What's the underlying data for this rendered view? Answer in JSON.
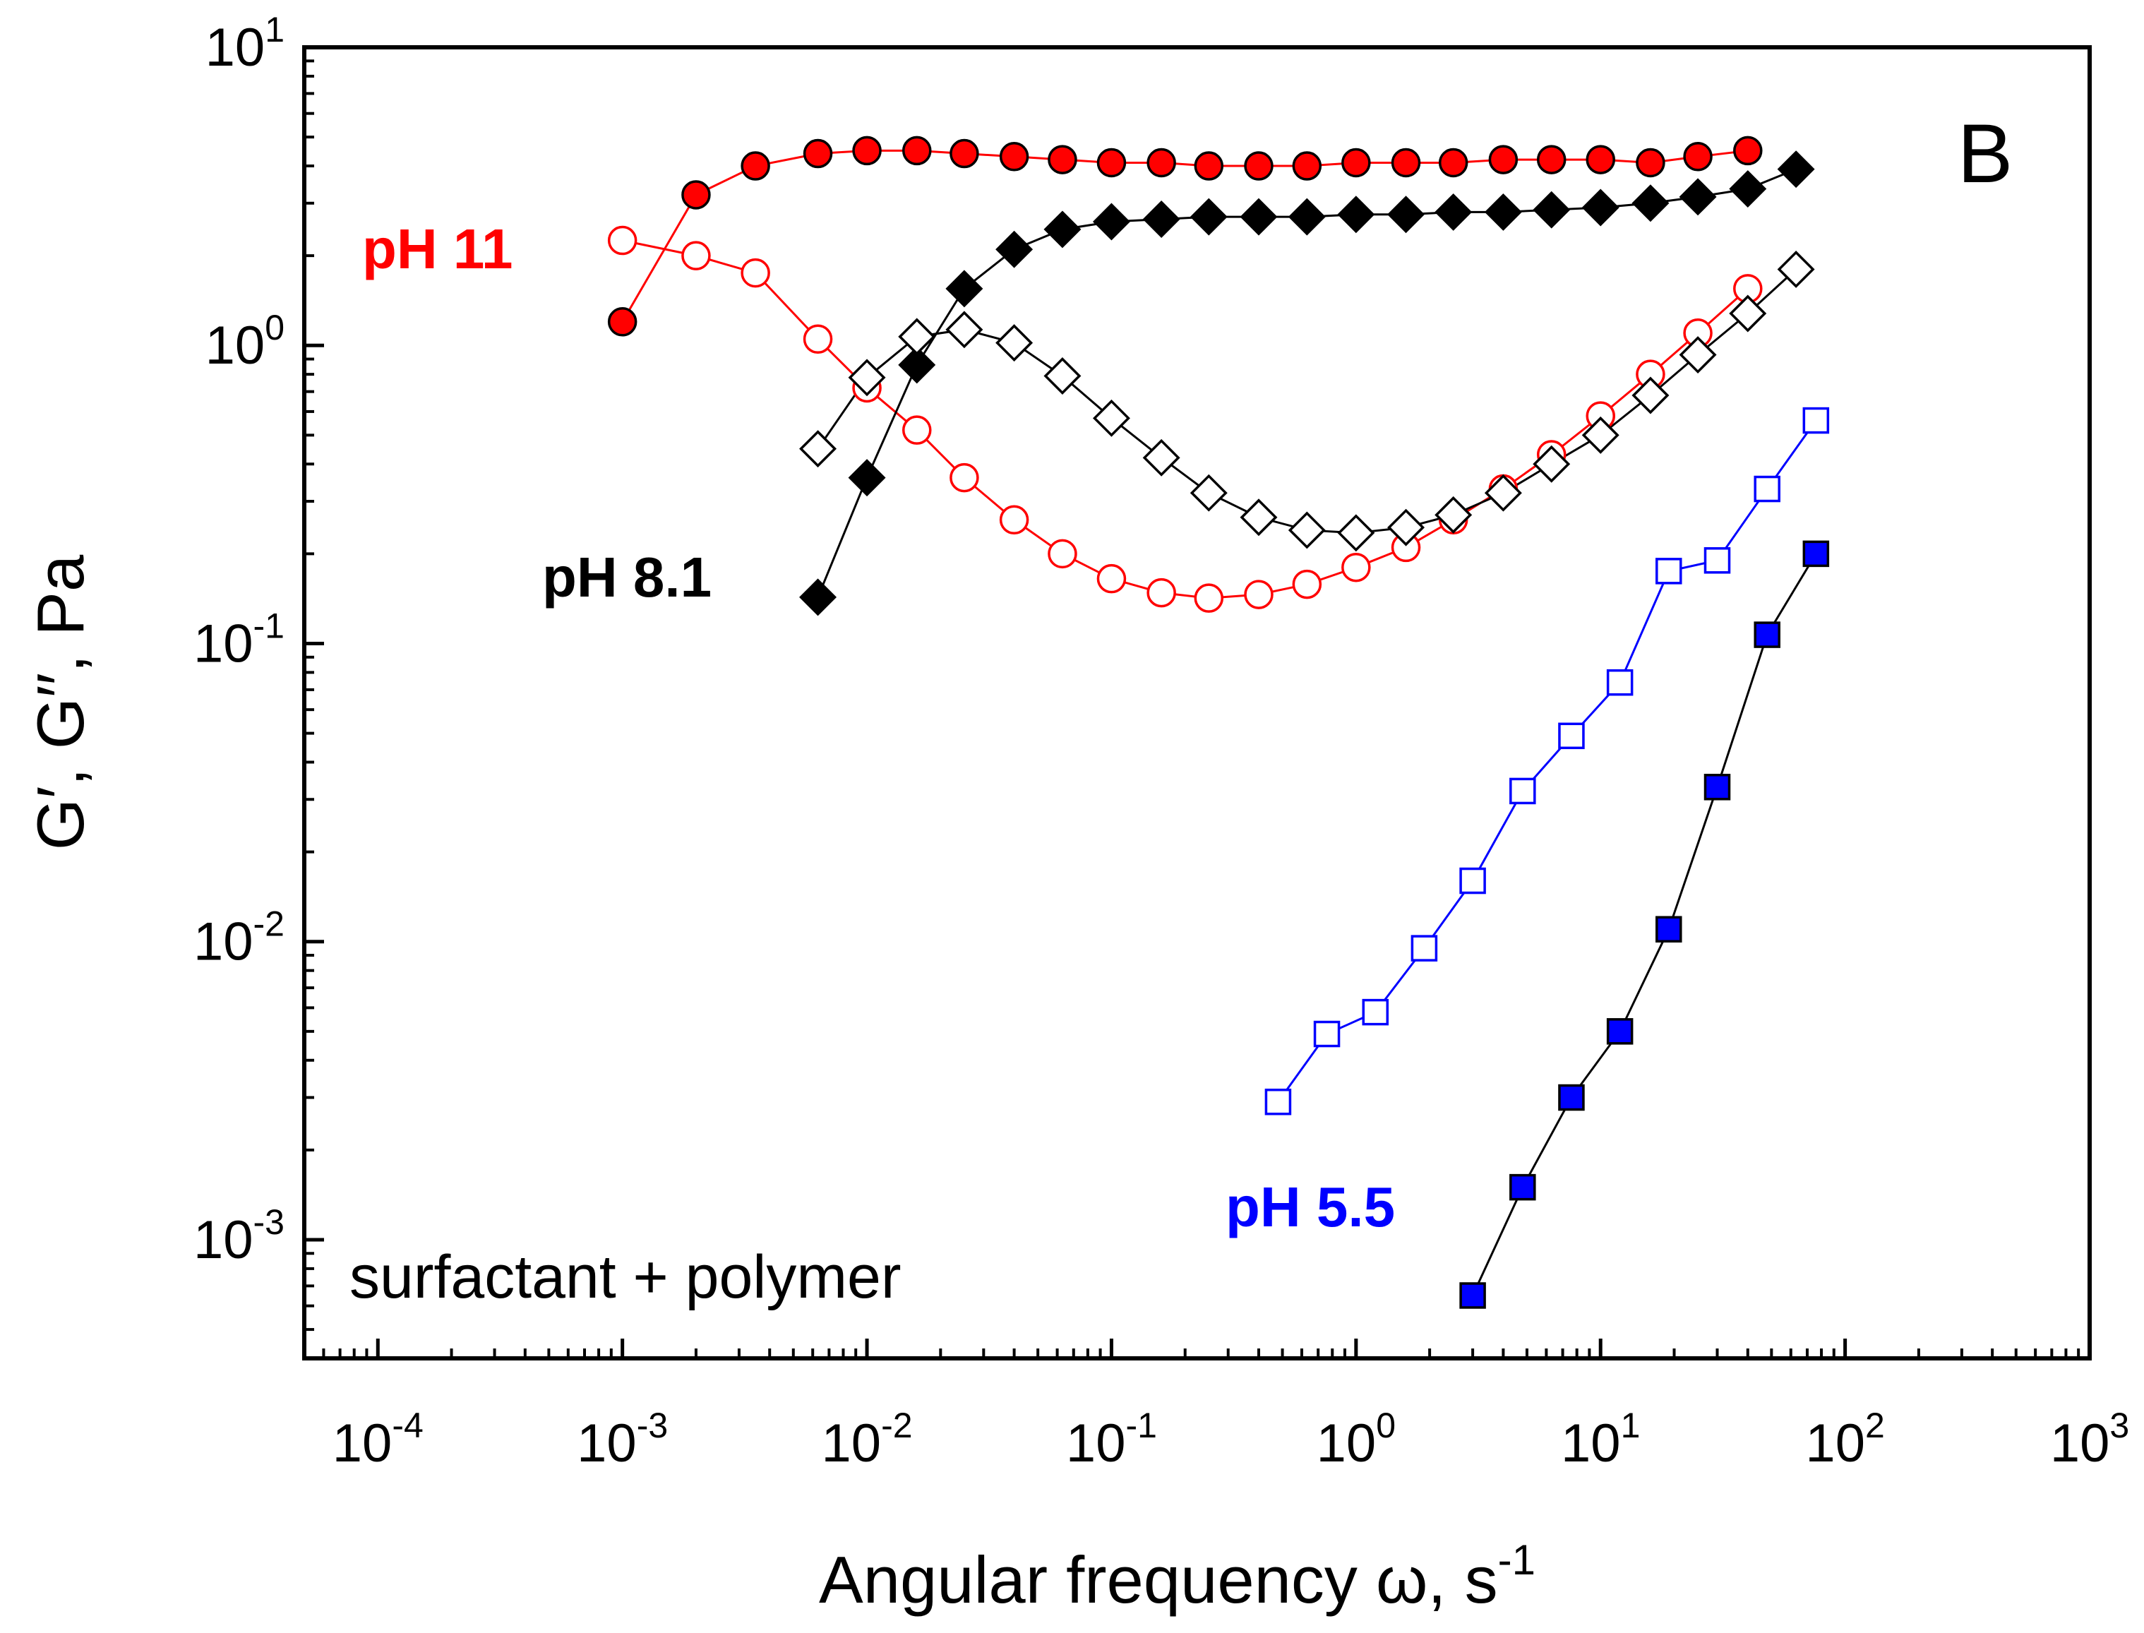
{
  "chart_data": {
    "type": "scatter",
    "scale": "log-log",
    "panel_letter": "B",
    "xlabel": {
      "main": "Angular frequency ω, s",
      "sup": "-1"
    },
    "ylabel": "G′, G′′, Pa",
    "annotation": "surfactant + polymer",
    "xlim": [
      5e-05,
      1000
    ],
    "ylim": [
      0.0004,
      10
    ],
    "x_ticks": [
      {
        "value": 0.0001,
        "base": "10",
        "exp": "-4"
      },
      {
        "value": 0.001,
        "base": "10",
        "exp": "-3"
      },
      {
        "value": 0.01,
        "base": "10",
        "exp": "-2"
      },
      {
        "value": 0.1,
        "base": "10",
        "exp": "-1"
      },
      {
        "value": 1,
        "base": "10",
        "exp": "0"
      },
      {
        "value": 10,
        "base": "10",
        "exp": "1"
      },
      {
        "value": 100,
        "base": "10",
        "exp": "2"
      },
      {
        "value": 1000,
        "base": "10",
        "exp": "3"
      }
    ],
    "y_ticks": [
      {
        "value": 0.001,
        "base": "10",
        "exp": "-3"
      },
      {
        "value": 0.01,
        "base": "10",
        "exp": "-2"
      },
      {
        "value": 0.1,
        "base": "10",
        "exp": "-1"
      },
      {
        "value": 1,
        "base": "10",
        "exp": "0"
      },
      {
        "value": 10,
        "base": "10",
        "exp": "1"
      }
    ],
    "series": [
      {
        "name": "pH 11 G'",
        "group": "pH 11",
        "modulus": "G'",
        "marker": "circle",
        "filled": true,
        "color": "#ff0000",
        "line_color": "#ff0000",
        "x": [
          0.001,
          0.002,
          0.0035,
          0.0063,
          0.01,
          0.016,
          0.025,
          0.04,
          0.063,
          0.1,
          0.16,
          0.25,
          0.4,
          0.63,
          1.0,
          1.6,
          2.5,
          4.0,
          6.3,
          10,
          16,
          25,
          40
        ],
        "y": [
          1.2,
          3.2,
          4.0,
          4.4,
          4.5,
          4.5,
          4.4,
          4.3,
          4.2,
          4.1,
          4.1,
          4.0,
          4.0,
          4.0,
          4.1,
          4.1,
          4.1,
          4.2,
          4.2,
          4.2,
          4.1,
          4.3,
          4.5
        ]
      },
      {
        "name": "pH 11 G''",
        "group": "pH 11",
        "modulus": "G''",
        "marker": "circle",
        "filled": false,
        "color": "#ff0000",
        "line_color": "#ff0000",
        "x": [
          0.001,
          0.002,
          0.0035,
          0.0063,
          0.01,
          0.016,
          0.025,
          0.04,
          0.063,
          0.1,
          0.16,
          0.25,
          0.4,
          0.63,
          1.0,
          1.6,
          2.5,
          4.0,
          6.3,
          10,
          16,
          25,
          40
        ],
        "y": [
          2.25,
          2.0,
          1.75,
          1.05,
          0.72,
          0.52,
          0.36,
          0.26,
          0.2,
          0.165,
          0.148,
          0.142,
          0.146,
          0.158,
          0.18,
          0.21,
          0.26,
          0.33,
          0.43,
          0.58,
          0.8,
          1.1,
          1.55
        ]
      },
      {
        "name": "pH 8.1 G'",
        "group": "pH 8.1",
        "modulus": "G'",
        "marker": "diamond",
        "filled": true,
        "color": "#000000",
        "line_color": "#000000",
        "x": [
          0.0063,
          0.01,
          0.016,
          0.025,
          0.04,
          0.063,
          0.1,
          0.16,
          0.25,
          0.4,
          0.63,
          1.0,
          1.6,
          2.5,
          4.0,
          6.3,
          10,
          16,
          25,
          40,
          63
        ],
        "y": [
          0.143,
          0.36,
          0.86,
          1.55,
          2.1,
          2.45,
          2.6,
          2.65,
          2.7,
          2.7,
          2.7,
          2.75,
          2.75,
          2.8,
          2.8,
          2.85,
          2.9,
          3.0,
          3.15,
          3.35,
          3.9
        ]
      },
      {
        "name": "pH 8.1 G''",
        "group": "pH 8.1",
        "modulus": "G''",
        "marker": "diamond",
        "filled": false,
        "color": "#000000",
        "line_color": "#000000",
        "x": [
          0.0063,
          0.01,
          0.016,
          0.025,
          0.04,
          0.063,
          0.1,
          0.16,
          0.25,
          0.4,
          0.63,
          1.0,
          1.6,
          2.5,
          4.0,
          6.3,
          10,
          16,
          25,
          40,
          63
        ],
        "y": [
          0.45,
          0.78,
          1.07,
          1.13,
          1.02,
          0.79,
          0.57,
          0.42,
          0.32,
          0.265,
          0.24,
          0.235,
          0.245,
          0.27,
          0.32,
          0.4,
          0.5,
          0.68,
          0.93,
          1.28,
          1.8
        ]
      },
      {
        "name": "pH 5.5 G'",
        "group": "pH 5.5",
        "modulus": "G'",
        "marker": "square",
        "filled": true,
        "color": "#0000ff",
        "line_color": "#000000",
        "x": [
          3.0,
          4.8,
          7.6,
          12,
          19,
          30,
          48,
          76
        ],
        "y": [
          0.00065,
          0.0015,
          0.003,
          0.005,
          0.011,
          0.033,
          0.107,
          0.2
        ]
      },
      {
        "name": "pH 5.5 G''",
        "group": "pH 5.5",
        "modulus": "G''",
        "marker": "square",
        "filled": false,
        "color": "#0000ff",
        "line_color": "#0000ff",
        "x": [
          0.48,
          0.76,
          1.2,
          1.9,
          3.0,
          4.8,
          7.6,
          12,
          19,
          30,
          48,
          76
        ],
        "y": [
          0.0029,
          0.0049,
          0.0058,
          0.0095,
          0.016,
          0.032,
          0.049,
          0.074,
          0.175,
          0.19,
          0.33,
          0.56
        ]
      }
    ],
    "group_labels": [
      {
        "text": "pH 11",
        "color": "#ff0000"
      },
      {
        "text": "pH 8.1",
        "color": "#000000"
      },
      {
        "text": "pH 5.5",
        "color": "#0000ff"
      }
    ]
  }
}
